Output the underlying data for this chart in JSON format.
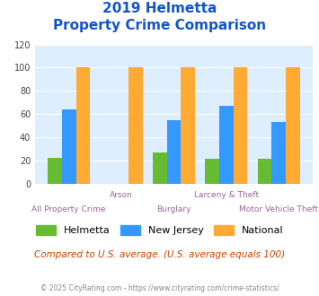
{
  "title_line1": "2019 Helmetta",
  "title_line2": "Property Crime Comparison",
  "categories": [
    "All Property Crime",
    "Arson",
    "Burglary",
    "Larceny & Theft",
    "Motor Vehicle Theft"
  ],
  "helmetta": [
    22,
    0,
    27,
    21,
    21
  ],
  "new_jersey": [
    64,
    0,
    55,
    67,
    53
  ],
  "national": [
    100,
    100,
    100,
    100,
    100
  ],
  "bar_colors": {
    "helmetta": "#66bb33",
    "new_jersey": "#3399ff",
    "national": "#ffaa33"
  },
  "ylim": [
    0,
    120
  ],
  "yticks": [
    0,
    20,
    40,
    60,
    80,
    100,
    120
  ],
  "title_color": "#1155cc",
  "xlabel_color": "#996699",
  "note_text": "Compared to U.S. average. (U.S. average equals 100)",
  "note_color": "#cc4400",
  "footer_text": "© 2025 CityRating.com - https://www.cityrating.com/crime-statistics/",
  "footer_color": "#888888",
  "bg_color": "#ddeeff",
  "fig_bg": "#ffffff",
  "legend_labels": [
    "Helmetta",
    "New Jersey",
    "National"
  ]
}
